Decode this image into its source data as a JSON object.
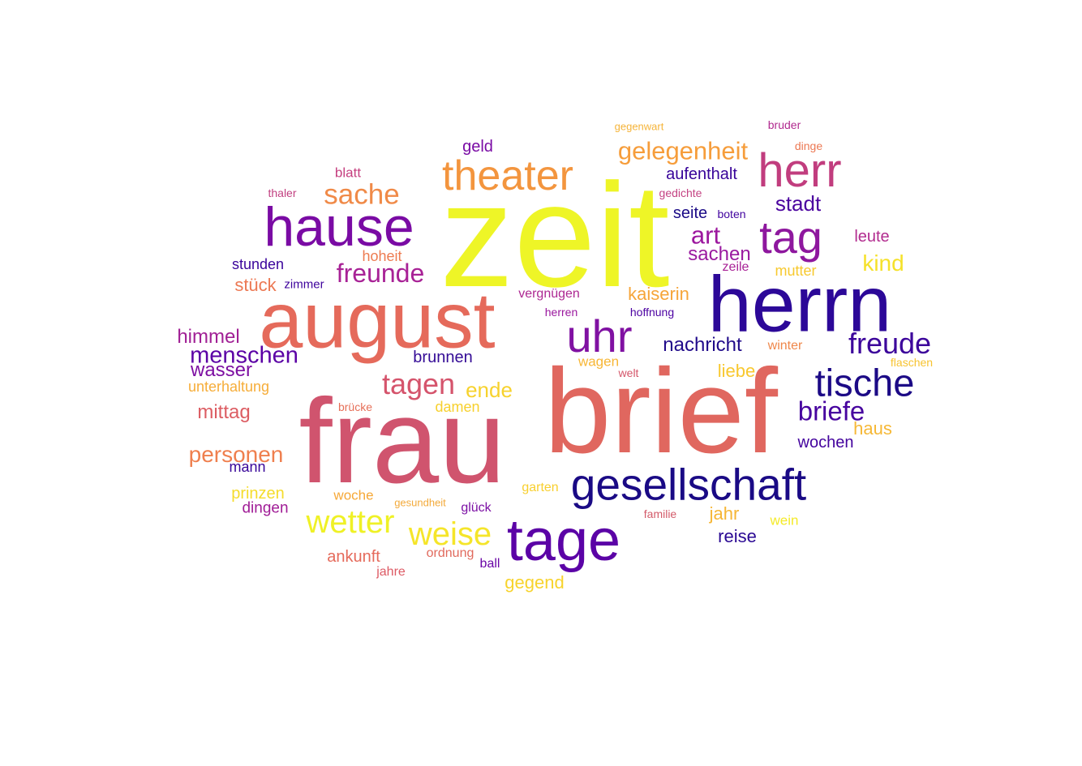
{
  "words": [
    {
      "text": "zeit",
      "color": "#eef527"
    },
    {
      "text": "brief",
      "color": "#e0675f"
    },
    {
      "text": "frau",
      "color": "#d0546e"
    },
    {
      "text": "herrn",
      "color": "#2c0898"
    },
    {
      "text": "august",
      "color": "#e56a5b"
    },
    {
      "text": "hause",
      "color": "#7a0ba4"
    },
    {
      "text": "tage",
      "color": "#5b03a6"
    },
    {
      "text": "gesellschaft",
      "color": "#1a0a85"
    },
    {
      "text": "theater",
      "color": "#f3953e"
    },
    {
      "text": "herr",
      "color": "#c13d7e"
    },
    {
      "text": "tag",
      "color": "#8e179e"
    },
    {
      "text": "uhr",
      "color": "#8011a2"
    },
    {
      "text": "tische",
      "color": "#1c0a86"
    },
    {
      "text": "weise",
      "color": "#f5e52a"
    },
    {
      "text": "wetter",
      "color": "#eff126"
    },
    {
      "text": "freude",
      "color": "#3c049b"
    },
    {
      "text": "tagen",
      "color": "#d5546c"
    },
    {
      "text": "gelegenheit",
      "color": "#f69d3b"
    },
    {
      "text": "sache",
      "color": "#f08a48"
    },
    {
      "text": "briefe",
      "color": "#47039f"
    },
    {
      "text": "freunde",
      "color": "#a82296"
    },
    {
      "text": "menschen",
      "color": "#5b01a5"
    },
    {
      "text": "art",
      "color": "#9c179e"
    },
    {
      "text": "personen",
      "color": "#ef7f4e"
    },
    {
      "text": "kind",
      "color": "#f5e12a"
    },
    {
      "text": "stadt",
      "color": "#4b039f"
    },
    {
      "text": "sachen",
      "color": "#9a1aa0"
    },
    {
      "text": "nachricht",
      "color": "#200a8a"
    },
    {
      "text": "ende",
      "color": "#f7d22d"
    },
    {
      "text": "mittag",
      "color": "#dc5d63"
    },
    {
      "text": "himmel",
      "color": "#a12095"
    },
    {
      "text": "wasser",
      "color": "#7d0fa2"
    },
    {
      "text": "kaiserin",
      "color": "#f6a539"
    },
    {
      "text": "aufenthalt",
      "color": "#370399"
    },
    {
      "text": "brunnen",
      "color": "#340b96"
    },
    {
      "text": "stück",
      "color": "#ec7853"
    },
    {
      "text": "liebe",
      "color": "#f8c830"
    },
    {
      "text": "reise",
      "color": "#2a0893"
    },
    {
      "text": "jahr",
      "color": "#f6b635"
    },
    {
      "text": "ankunft",
      "color": "#e56a5b"
    },
    {
      "text": "gegend",
      "color": "#f7d32c"
    },
    {
      "text": "haus",
      "color": "#f6b836"
    },
    {
      "text": "wochen",
      "color": "#44039e"
    },
    {
      "text": "seite",
      "color": "#1a0a86"
    },
    {
      "text": "dingen",
      "color": "#a01c96"
    },
    {
      "text": "prinzen",
      "color": "#f5dc2b"
    },
    {
      "text": "mann",
      "color": "#380599"
    },
    {
      "text": "stunden",
      "color": "#3a049b"
    },
    {
      "text": "leute",
      "color": "#b22c8f"
    },
    {
      "text": "geld",
      "color": "#7a0ca5"
    },
    {
      "text": "unterhaltung",
      "color": "#f6ad39"
    },
    {
      "text": "damen",
      "color": "#f7d02d"
    },
    {
      "text": "mutter",
      "color": "#f7c92f"
    },
    {
      "text": "vergnügen",
      "color": "#ad2892"
    },
    {
      "text": "hoheit",
      "color": "#ed7b50"
    },
    {
      "text": "blatt",
      "color": "#c53f7f"
    },
    {
      "text": "zeile",
      "color": "#a82296"
    },
    {
      "text": "winter",
      "color": "#ef874a"
    },
    {
      "text": "wagen",
      "color": "#f7b635"
    },
    {
      "text": "woche",
      "color": "#f6a837"
    },
    {
      "text": "ordnung",
      "color": "#e16a5d"
    },
    {
      "text": "garten",
      "color": "#f8cf2e"
    },
    {
      "text": "glück",
      "color": "#7b0fa4"
    },
    {
      "text": "wein",
      "color": "#f4ea27"
    },
    {
      "text": "jahre",
      "color": "#dd5a64"
    },
    {
      "text": "ball",
      "color": "#6a06a6"
    },
    {
      "text": "zimmer",
      "color": "#3f049d"
    },
    {
      "text": "herren",
      "color": "#9a179e"
    },
    {
      "text": "hoffnung",
      "color": "#4c02a2"
    },
    {
      "text": "welt",
      "color": "#d4566a"
    },
    {
      "text": "brücke",
      "color": "#e66f58"
    },
    {
      "text": "gesundheit",
      "color": "#f3aa3b"
    },
    {
      "text": "familie",
      "color": "#d35b6a"
    },
    {
      "text": "flaschen",
      "color": "#f7c330"
    },
    {
      "text": "thaler",
      "color": "#c13f80"
    },
    {
      "text": "gedichte",
      "color": "#c44383"
    },
    {
      "text": "boten",
      "color": "#42049f"
    },
    {
      "text": "gegenwart",
      "color": "#f5b43a"
    },
    {
      "text": "bruder",
      "color": "#b12b8f"
    },
    {
      "text": "dinge",
      "color": "#ec7853"
    }
  ]
}
